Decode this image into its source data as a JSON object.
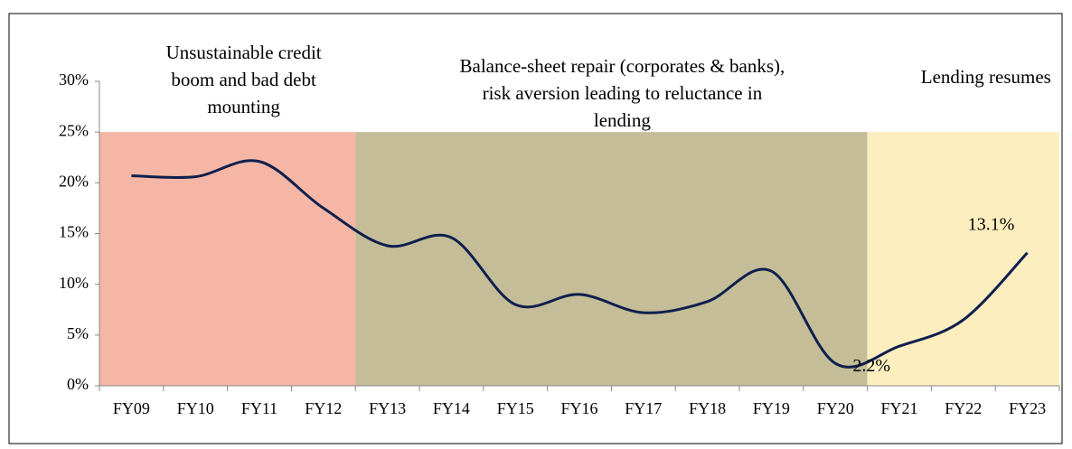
{
  "chart_data": {
    "type": "line",
    "categories": [
      "FY09",
      "FY10",
      "FY11",
      "FY12",
      "FY13",
      "FY14",
      "FY15",
      "FY16",
      "FY17",
      "FY18",
      "FY19",
      "FY20",
      "FY21",
      "FY22",
      "FY23"
    ],
    "series": [
      {
        "color": "#0e1f4d",
        "values": [
          20.7,
          20.6,
          22.1,
          17.5,
          13.8,
          14.6,
          8.0,
          9.0,
          7.2,
          8.3,
          11.3,
          2.2,
          3.9,
          6.5,
          13.1
        ],
        "value_labels": [
          null,
          null,
          null,
          null,
          null,
          null,
          null,
          null,
          null,
          null,
          null,
          "2.2%",
          null,
          null,
          "13.1%"
        ]
      }
    ],
    "ylim": [
      0,
      30
    ],
    "yticks": [
      {
        "value": 0,
        "label": "0%"
      },
      {
        "value": 5,
        "label": "5%"
      },
      {
        "value": 10,
        "label": "10%"
      },
      {
        "value": 15,
        "label": "15%"
      },
      {
        "value": 20,
        "label": "20%"
      },
      {
        "value": 25,
        "label": "25%"
      },
      {
        "value": 30,
        "label": "30%"
      }
    ],
    "regions": [
      {
        "from": "FY09",
        "to": "FY12",
        "ymax": 25,
        "color": "#f5b6a5",
        "label": [
          "Unsustainable credit",
          "boom and bad debt",
          "mounting"
        ]
      },
      {
        "from": "FY13",
        "to": "FY20",
        "ymax": 25,
        "color": "#c4bd97",
        "label": [
          "Balance-sheet repair (corporates & banks),",
          "risk aversion leading to reluctance in",
          "lending"
        ]
      },
      {
        "from": "FY21",
        "to": "FY23",
        "ymax": 25,
        "color": "#fdeec0",
        "label": [
          "Lending resumes"
        ]
      }
    ]
  }
}
